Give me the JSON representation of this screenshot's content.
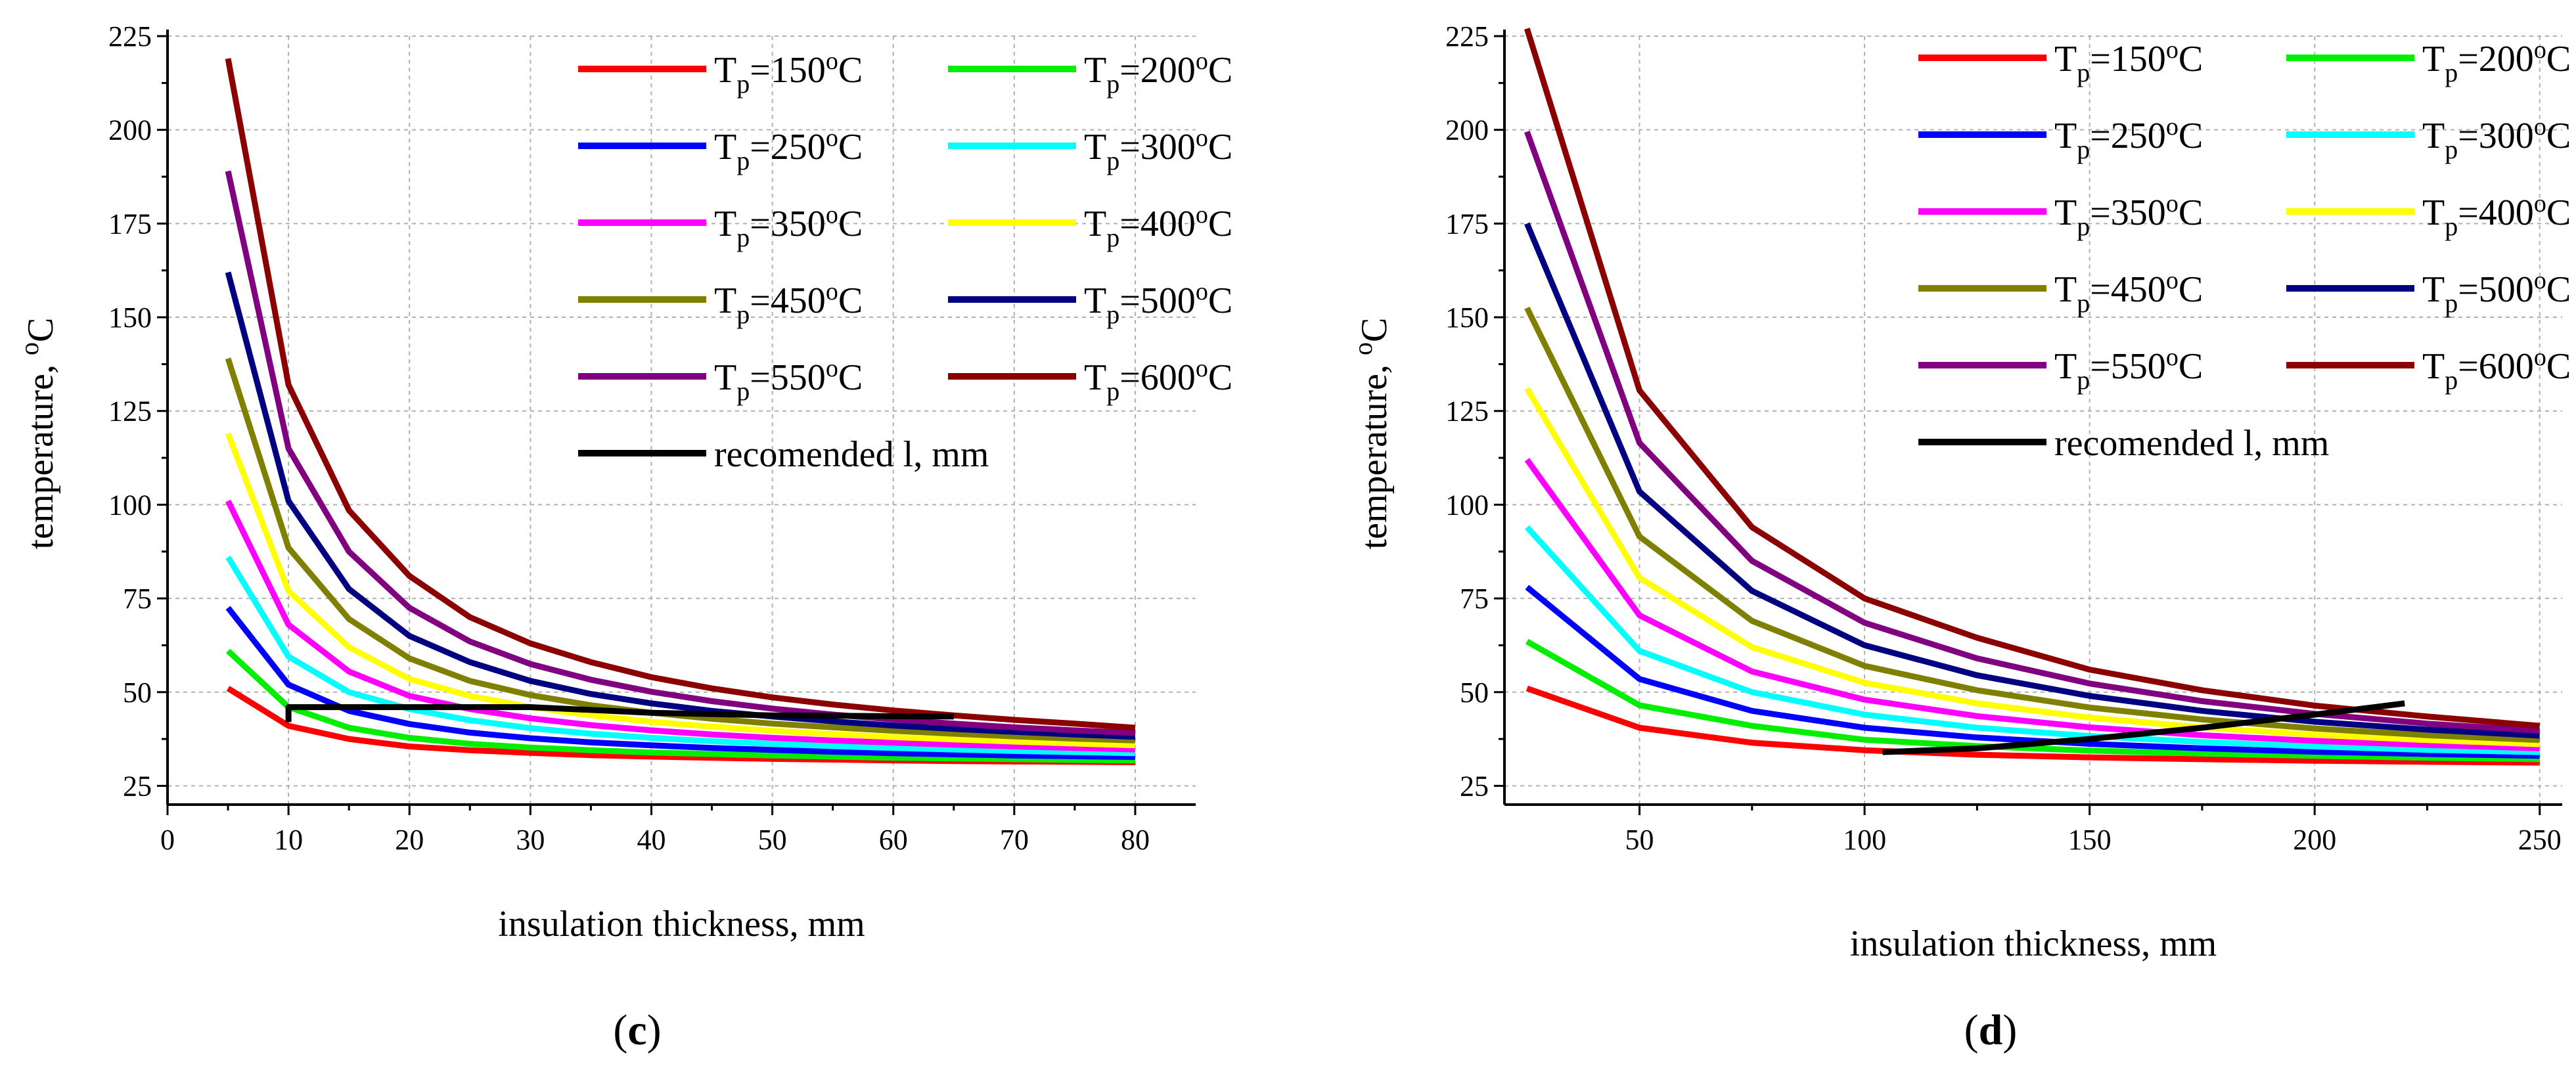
{
  "chart_data": [
    {
      "panel": "c",
      "type": "line",
      "title": "",
      "xlabel": "insulation thickness, mm",
      "ylabel": "temperature, °C",
      "ylabel_main": "temperature, ",
      "ylabel_sup": "o",
      "ylabel_tail": "C",
      "xlim": [
        0,
        85
      ],
      "ylim": [
        20,
        225
      ],
      "xticks": [
        0,
        10,
        20,
        30,
        40,
        50,
        60,
        70,
        80
      ],
      "yticks": [
        25,
        50,
        75,
        100,
        125,
        150,
        175,
        200,
        225
      ],
      "label_prefix": "(",
      "label_letter": "c",
      "label_suffix": ")",
      "x": [
        5,
        10,
        15,
        20,
        25,
        30,
        35,
        40,
        45,
        50,
        55,
        60,
        65,
        70,
        75,
        80
      ],
      "series": [
        {
          "name": "Tp=150°C",
          "tp": "150",
          "color": "#ff0000",
          "values": [
            51,
            41,
            37.5,
            35.5,
            34.5,
            33.8,
            33.2,
            32.8,
            32.5,
            32.2,
            32,
            31.8,
            31.6,
            31.5,
            31.4,
            31.3
          ]
        },
        {
          "name": "Tp=200°C",
          "tp": "200",
          "color": "#00ee00",
          "values": [
            61,
            46,
            40.5,
            37.8,
            36.2,
            35.2,
            34.5,
            33.9,
            33.5,
            33.1,
            32.8,
            32.5,
            32.3,
            32.1,
            31.9,
            31.8
          ]
        },
        {
          "name": "Tp=250°C",
          "tp": "250",
          "color": "#0000ff",
          "values": [
            72.5,
            52,
            45,
            41.5,
            39.2,
            37.7,
            36.6,
            35.8,
            35.1,
            34.6,
            34.1,
            33.7,
            33.4,
            33.1,
            32.9,
            32.7
          ]
        },
        {
          "name": "Tp=300°C",
          "tp": "300",
          "color": "#00ffff",
          "values": [
            86,
            59.5,
            50,
            45.5,
            42.5,
            40.4,
            38.9,
            37.8,
            36.9,
            36.2,
            35.6,
            35.1,
            34.7,
            34.3,
            34,
            33.7
          ]
        },
        {
          "name": "Tp=350°C",
          "tp": "350",
          "color": "#ff00ff",
          "values": [
            101,
            68,
            55.5,
            49,
            45.5,
            43,
            41.2,
            39.8,
            38.7,
            37.8,
            37.1,
            36.5,
            36,
            35.5,
            35.1,
            34.7
          ]
        },
        {
          "name": "Tp=400°C",
          "tp": "400",
          "color": "#ffff00",
          "values": [
            119,
            77,
            62,
            53.5,
            49,
            46,
            43.8,
            42.1,
            40.8,
            39.7,
            38.8,
            38,
            37.4,
            36.8,
            36.3,
            35.8
          ]
        },
        {
          "name": "Tp=450°C",
          "tp": "450",
          "color": "#808000",
          "values": [
            139,
            88.5,
            69.5,
            59,
            53,
            49.2,
            46.5,
            44.5,
            42.9,
            41.6,
            40.6,
            39.7,
            38.9,
            38.2,
            37.6,
            37.1
          ]
        },
        {
          "name": "Tp=500°C",
          "tp": "500",
          "color": "#000080",
          "values": [
            162,
            101,
            77.5,
            65,
            58,
            53,
            49.5,
            47,
            45,
            43.5,
            42.2,
            41.1,
            40.2,
            39.4,
            38.7,
            38.1
          ]
        },
        {
          "name": "Tp=550°C",
          "tp": "550",
          "color": "#800080",
          "values": [
            189,
            115,
            87.5,
            72.5,
            63.5,
            57.5,
            53.3,
            50.1,
            47.6,
            45.6,
            44,
            42.7,
            41.6,
            40.6,
            39.8,
            39.1
          ]
        },
        {
          "name": "Tp=600°C",
          "tp": "600",
          "color": "#8b0000",
          "values": [
            219,
            132,
            98.5,
            81,
            70,
            63,
            58,
            54,
            51,
            48.6,
            46.7,
            45.1,
            43.8,
            42.6,
            41.6,
            40.5
          ]
        }
      ],
      "recommended": {
        "name": "recomended l, mm",
        "label": "recomended l, mm",
        "color": "#000000",
        "x": [
          10,
          10,
          30,
          40,
          50,
          65
        ],
        "y": [
          42,
          46,
          46,
          44.5,
          43.8,
          43.5
        ]
      },
      "legend_position": "top-right"
    },
    {
      "panel": "d",
      "type": "line",
      "title": "",
      "xlabel": "insulation thickness, mm",
      "ylabel": "temperature, °C",
      "ylabel_main": "temperature, ",
      "ylabel_sup": "o",
      "ylabel_tail": "C",
      "xlim": [
        20,
        255
      ],
      "ylim": [
        20,
        225
      ],
      "xticks": [
        50,
        100,
        150,
        200,
        250
      ],
      "yticks": [
        25,
        50,
        75,
        100,
        125,
        150,
        175,
        200,
        225
      ],
      "label_prefix": "(",
      "label_letter": "d",
      "label_suffix": ")",
      "x": [
        25,
        50,
        75,
        100,
        125,
        150,
        175,
        200,
        225,
        250
      ],
      "series": [
        {
          "name": "Tp=150°C",
          "tp": "150",
          "color": "#ff0000",
          "values": [
            51,
            40.5,
            36.5,
            34.5,
            33.3,
            32.6,
            32.1,
            31.7,
            31.4,
            31.2
          ]
        },
        {
          "name": "Tp=200°C",
          "tp": "200",
          "color": "#00ee00",
          "values": [
            63.5,
            46.5,
            41,
            37.3,
            35.6,
            34.4,
            33.6,
            33,
            32.5,
            32.1
          ]
        },
        {
          "name": "Tp=250°C",
          "tp": "250",
          "color": "#0000ff",
          "values": [
            78,
            53.5,
            45,
            40.5,
            37.9,
            36.2,
            35,
            34.1,
            33.5,
            33
          ]
        },
        {
          "name": "Tp=300°C",
          "tp": "300",
          "color": "#00ffff",
          "values": [
            94,
            61,
            50,
            44,
            40.5,
            38.3,
            36.7,
            35.5,
            34.6,
            34
          ]
        },
        {
          "name": "Tp=350°C",
          "tp": "350",
          "color": "#ff00ff",
          "values": [
            112,
            70.5,
            55.5,
            48,
            43.6,
            40.6,
            38.5,
            37,
            35.9,
            35
          ]
        },
        {
          "name": "Tp=400°C",
          "tp": "400",
          "color": "#ffff00",
          "values": [
            131,
            80.5,
            62,
            52.5,
            47,
            43.2,
            40.6,
            38.6,
            37.2,
            36.1
          ]
        },
        {
          "name": "Tp=450°C",
          "tp": "450",
          "color": "#808000",
          "values": [
            152.5,
            91.5,
            69,
            57,
            50.5,
            45.9,
            42.7,
            40.3,
            38.5,
            37.2
          ]
        },
        {
          "name": "Tp=500°C",
          "tp": "500",
          "color": "#000080",
          "values": [
            175,
            103.5,
            77,
            62.5,
            54.5,
            49,
            45,
            42.1,
            40,
            38.4
          ]
        },
        {
          "name": "Tp=550°C",
          "tp": "550",
          "color": "#800080",
          "values": [
            199.5,
            116.5,
            85,
            68.5,
            59,
            52.3,
            47.6,
            44.2,
            41.6,
            39.7
          ]
        },
        {
          "name": "Tp=600°C",
          "tp": "600",
          "color": "#8b0000",
          "values": [
            227,
            130.5,
            94,
            75,
            64.5,
            56,
            50.5,
            46.4,
            43.5,
            41
          ]
        }
      ],
      "recommended": {
        "name": "recomended l, mm",
        "label": "recomended l, mm",
        "color": "#000000",
        "x": [
          104,
          125,
          150,
          175,
          200,
          220
        ],
        "y": [
          34,
          35,
          37.5,
          40.5,
          44,
          47
        ]
      },
      "legend_position": "top-right"
    }
  ]
}
